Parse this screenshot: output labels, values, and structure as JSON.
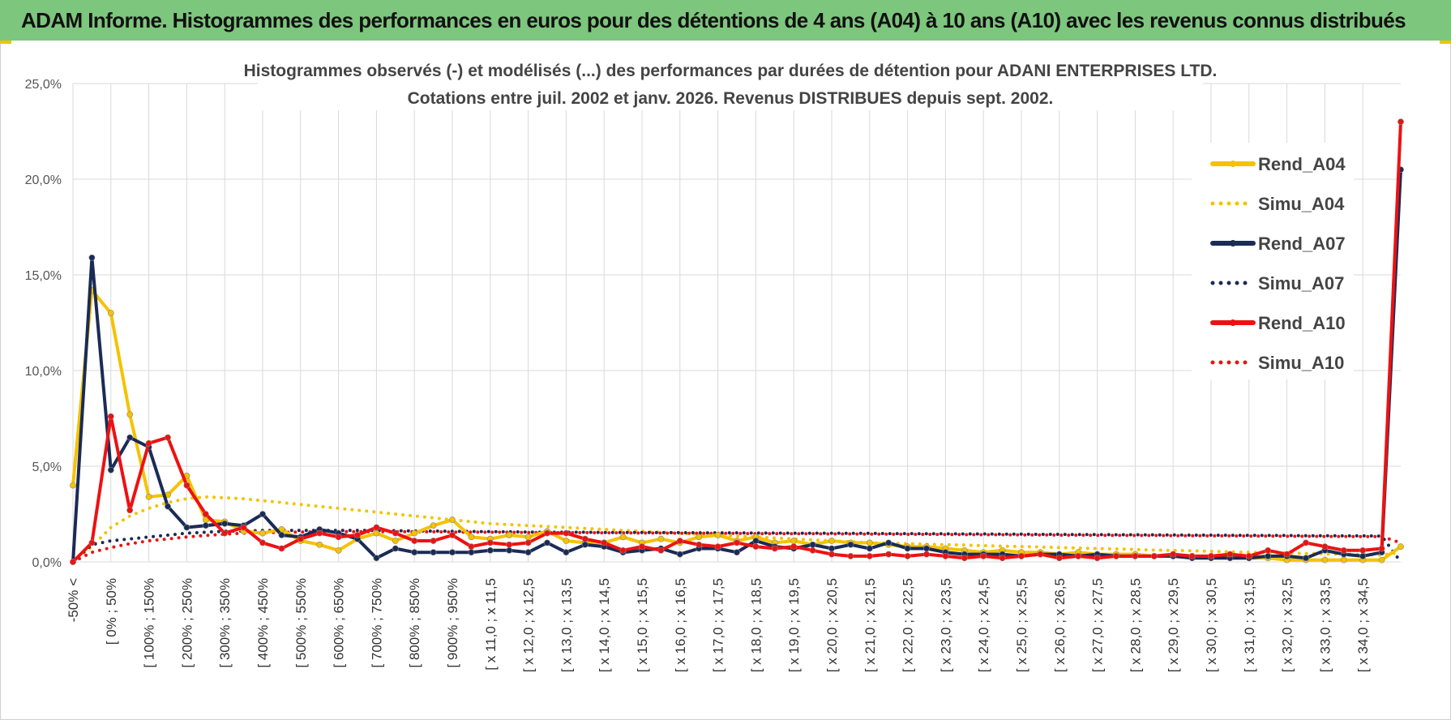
{
  "header": {
    "title": "ADAM Informe. Histogrammes des performances en euros pour des détentions de 4 ans (A04) à 10 ans (A10) avec les revenus connus distribués"
  },
  "chart_data": {
    "type": "line",
    "title_lines": [
      "Histogrammes observés (-) et modélisés (...) des performances par durées de détention pour ADANI ENTERPRISES LTD.",
      "Cotations entre juil. 2002 et janv. 2026. Revenus DISTRIBUES depuis sept. 2002."
    ],
    "xlabel": "",
    "ylabel": "",
    "ylim": [
      0,
      25
    ],
    "y_ticks": [
      "0,0%",
      "5,0%",
      "10,0%",
      "15,0%",
      "20,0%",
      "25,0%"
    ],
    "x_tick_labels": [
      "-50% <",
      "[ 0% ; 50%",
      "[ 100% ; 150%",
      "[ 200% ; 250%",
      "[ 300% ; 350%",
      "[ 400% ; 450%",
      "[ 500% ; 550%",
      "[ 600% ; 650%",
      "[ 700% ; 750%",
      "[ 800% ; 850%",
      "[ 900% ; 950%",
      "[ x 11,0 ; x 11,5",
      "[ x 12,0 ; x 12,5",
      "[ x 13,0 ; x 13,5",
      "[ x 14,0 ; x 14,5",
      "[ x 15,0 ; x 15,5",
      "[ x 16,0 ; x 16,5",
      "[ x 17,0 ; x 17,5",
      "[ x 18,0 ; x 18,5",
      "[ x 19,0 ; x 19,5",
      "[ x 20,0 ; x 20,5",
      "[ x 21,0 ; x 21,5",
      "[ x 22,0 ; x 22,5",
      "[ x 23,0 ; x 23,5",
      "[ x 24,0 ; x 24,5",
      "[ x 25,0 ; x 25,5",
      "[ x 26,0 ; x 26,5",
      "[ x 27,0 ; x 27,5",
      "[ x 28,0 ; x 28,5",
      "[ x 29,0 ; x 29,5",
      "[ x 30,0 ; x 30,5",
      "[ x 31,0 ; x 31,5",
      "[ x 32,0 ; x 32,5",
      "[ x 33,0 ; x 33,5",
      "[ x 34,0 ; x 34,5"
    ],
    "grid": true,
    "legend_position": "right",
    "series": [
      {
        "name": "Rend_A04",
        "style": "solid",
        "markers": true,
        "color": "#f5c200",
        "values": [
          4.0,
          14.2,
          13.0,
          7.7,
          3.4,
          3.5,
          4.5,
          2.2,
          2.1,
          1.6,
          1.5,
          1.7,
          1.1,
          0.9,
          0.6,
          1.2,
          1.5,
          1.1,
          1.5,
          1.9,
          2.2,
          1.3,
          1.2,
          1.4,
          1.3,
          1.6,
          1.1,
          1.0,
          1.0,
          1.3,
          1.0,
          1.2,
          1.0,
          1.3,
          1.4,
          1.1,
          1.3,
          1.0,
          1.1,
          0.9,
          1.1,
          1.0,
          1.0,
          0.9,
          0.8,
          0.8,
          0.7,
          0.6,
          0.5,
          0.6,
          0.5,
          0.5,
          0.4,
          0.5,
          0.4,
          0.4,
          0.4,
          0.3,
          0.3,
          0.3,
          0.3,
          0.2,
          0.2,
          0.2,
          0.1,
          0.1,
          0.1,
          0.1,
          0.1,
          0.1,
          0.8
        ]
      },
      {
        "name": "Simu_A04",
        "style": "dotted",
        "markers": false,
        "color": "#f5c200",
        "values": [
          0.0,
          0.8,
          1.8,
          2.4,
          2.8,
          3.1,
          3.3,
          3.4,
          3.35,
          3.3,
          3.2,
          3.1,
          3.0,
          2.9,
          2.8,
          2.7,
          2.6,
          2.5,
          2.4,
          2.3,
          2.2,
          2.1,
          2.0,
          1.95,
          1.9,
          1.85,
          1.8,
          1.75,
          1.7,
          1.65,
          1.6,
          1.55,
          1.5,
          1.45,
          1.4,
          1.35,
          1.3,
          1.25,
          1.2,
          1.15,
          1.1,
          1.05,
          1.0,
          0.98,
          0.95,
          0.92,
          0.9,
          0.88,
          0.85,
          0.82,
          0.8,
          0.78,
          0.75,
          0.72,
          0.7,
          0.68,
          0.65,
          0.62,
          0.6,
          0.58,
          0.55,
          0.52,
          0.5,
          0.48,
          0.46,
          0.44,
          0.42,
          0.4,
          0.38,
          0.36,
          0.5
        ]
      },
      {
        "name": "Rend_A07",
        "style": "solid",
        "markers": true,
        "color": "#1a2b56",
        "values": [
          0.0,
          15.9,
          4.8,
          6.5,
          6.0,
          2.9,
          1.8,
          1.9,
          2.0,
          1.9,
          2.5,
          1.4,
          1.3,
          1.7,
          1.5,
          1.2,
          0.2,
          0.7,
          0.5,
          0.5,
          0.5,
          0.5,
          0.6,
          0.6,
          0.5,
          1.0,
          0.5,
          0.9,
          0.8,
          0.5,
          0.6,
          0.7,
          0.4,
          0.7,
          0.7,
          0.5,
          1.1,
          0.8,
          0.7,
          0.9,
          0.7,
          0.9,
          0.7,
          1.0,
          0.7,
          0.7,
          0.5,
          0.4,
          0.4,
          0.4,
          0.3,
          0.4,
          0.4,
          0.3,
          0.4,
          0.3,
          0.3,
          0.3,
          0.3,
          0.2,
          0.2,
          0.2,
          0.2,
          0.3,
          0.3,
          0.2,
          0.6,
          0.4,
          0.3,
          0.5,
          20.5
        ]
      },
      {
        "name": "Simu_A07",
        "style": "dotted",
        "markers": false,
        "color": "#1a2b56",
        "values": [
          0.0,
          0.9,
          1.1,
          1.2,
          1.3,
          1.4,
          1.5,
          1.55,
          1.6,
          1.62,
          1.64,
          1.65,
          1.65,
          1.65,
          1.65,
          1.65,
          1.64,
          1.63,
          1.62,
          1.61,
          1.6,
          1.59,
          1.58,
          1.57,
          1.56,
          1.55,
          1.55,
          1.55,
          1.54,
          1.54,
          1.54,
          1.53,
          1.53,
          1.52,
          1.52,
          1.52,
          1.51,
          1.51,
          1.5,
          1.5,
          1.5,
          1.49,
          1.49,
          1.48,
          1.48,
          1.47,
          1.47,
          1.46,
          1.46,
          1.45,
          1.45,
          1.44,
          1.44,
          1.43,
          1.43,
          1.42,
          1.42,
          1.41,
          1.41,
          1.4,
          1.4,
          1.39,
          1.39,
          1.38,
          1.38,
          1.37,
          1.37,
          1.36,
          1.36,
          1.35,
          0.0
        ]
      },
      {
        "name": "Rend_A10",
        "style": "solid",
        "markers": true,
        "color": "#ee1111",
        "values": [
          0.0,
          1.0,
          7.6,
          2.7,
          6.2,
          6.5,
          4.0,
          2.5,
          1.5,
          1.8,
          1.0,
          0.7,
          1.2,
          1.5,
          1.3,
          1.4,
          1.8,
          1.5,
          1.1,
          1.1,
          1.4,
          0.8,
          1.0,
          0.9,
          1.0,
          1.5,
          1.5,
          1.2,
          1.0,
          0.6,
          0.8,
          0.6,
          1.1,
          0.9,
          0.8,
          1.0,
          0.8,
          0.7,
          0.8,
          0.6,
          0.4,
          0.3,
          0.3,
          0.4,
          0.3,
          0.4,
          0.3,
          0.2,
          0.3,
          0.2,
          0.3,
          0.4,
          0.2,
          0.3,
          0.2,
          0.3,
          0.3,
          0.3,
          0.4,
          0.3,
          0.3,
          0.4,
          0.3,
          0.6,
          0.4,
          1.0,
          0.8,
          0.6,
          0.6,
          0.7,
          23.0
        ]
      },
      {
        "name": "Simu_A10",
        "style": "dotted",
        "markers": false,
        "color": "#ee1111",
        "values": [
          0.0,
          0.5,
          0.75,
          0.95,
          1.1,
          1.2,
          1.3,
          1.38,
          1.45,
          1.5,
          1.52,
          1.55,
          1.56,
          1.57,
          1.58,
          1.58,
          1.58,
          1.58,
          1.57,
          1.57,
          1.56,
          1.56,
          1.55,
          1.55,
          1.54,
          1.54,
          1.53,
          1.53,
          1.52,
          1.52,
          1.51,
          1.51,
          1.5,
          1.5,
          1.49,
          1.49,
          1.48,
          1.48,
          1.47,
          1.47,
          1.46,
          1.46,
          1.45,
          1.45,
          1.44,
          1.44,
          1.43,
          1.43,
          1.42,
          1.42,
          1.41,
          1.41,
          1.4,
          1.4,
          1.39,
          1.39,
          1.38,
          1.38,
          1.37,
          1.37,
          1.36,
          1.36,
          1.35,
          1.35,
          1.34,
          1.34,
          1.33,
          1.33,
          1.32,
          1.32,
          1.0
        ]
      }
    ]
  }
}
